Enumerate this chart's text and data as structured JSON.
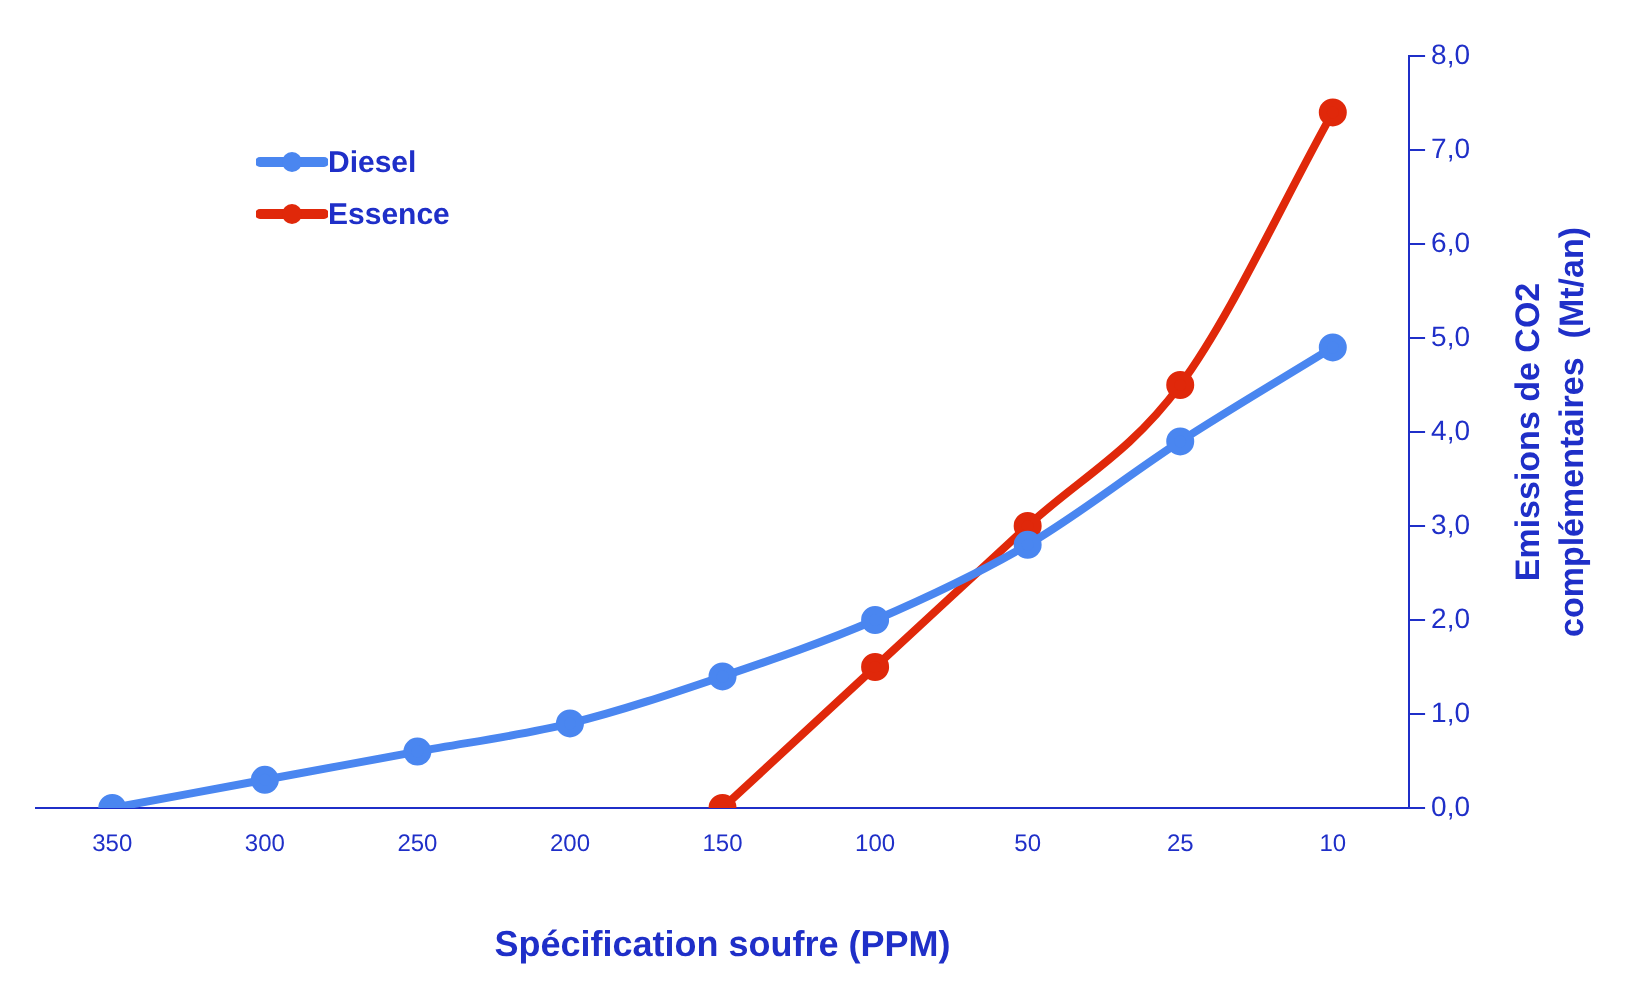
{
  "chart_data": {
    "type": "line",
    "xlabel": "Spécification soufre (PPM)",
    "ylabel": "Emissions de CO2\ncomplémentaires  (Mt/an)",
    "categories": [
      "350",
      "300",
      "250",
      "200",
      "150",
      "100",
      "50",
      "25",
      "10"
    ],
    "series": [
      {
        "name": "Diesel",
        "color": "#4a86f0",
        "values": [
          0,
          0.3,
          0.6,
          0.9,
          1.4,
          2.0,
          2.8,
          3.9,
          4.9
        ]
      },
      {
        "name": "Essence",
        "color": "#e0280a",
        "values": [
          null,
          null,
          null,
          null,
          0,
          1.5,
          3.0,
          4.5,
          7.4
        ]
      }
    ],
    "ylim": [
      0,
      8
    ],
    "yticks": [
      {
        "value": 0,
        "label": "0,0"
      },
      {
        "value": 1,
        "label": "1,0"
      },
      {
        "value": 2,
        "label": "2,0"
      },
      {
        "value": 3,
        "label": "3,0"
      },
      {
        "value": 4,
        "label": "4,0"
      },
      {
        "value": 5,
        "label": "5,0"
      },
      {
        "value": 6,
        "label": "6,0"
      },
      {
        "value": 7,
        "label": "7,0"
      },
      {
        "value": 8,
        "label": "8,0"
      }
    ],
    "grid": false,
    "legend": "top left",
    "marker": "circle",
    "line_style": "solid"
  }
}
